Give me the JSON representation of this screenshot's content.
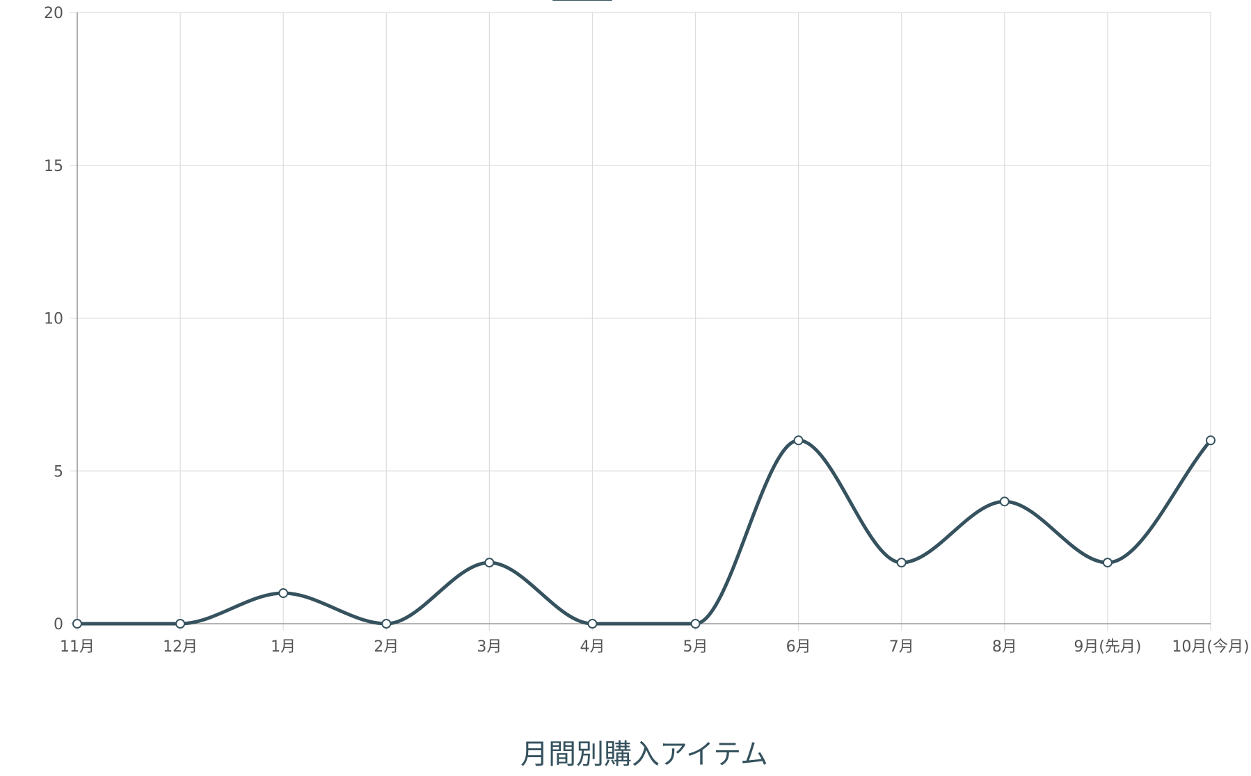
{
  "chart_data": {
    "type": "line",
    "title": "月間別購入アイテム",
    "categories": [
      "11月",
      "12月",
      "1月",
      "2月",
      "3月",
      "4月",
      "5月",
      "6月",
      "7月",
      "8月",
      "9月(先月)",
      "10月(今月)"
    ],
    "series": [
      {
        "values": [
          0,
          0,
          1,
          0,
          2,
          0,
          0,
          6,
          2,
          4,
          2,
          6
        ]
      }
    ],
    "ylim": [
      0,
      20
    ],
    "yticks": [
      0,
      5,
      10,
      15,
      20
    ],
    "grid": true,
    "smooth": true,
    "colors": {
      "line": "#35525e",
      "title": "#35525e"
    }
  }
}
